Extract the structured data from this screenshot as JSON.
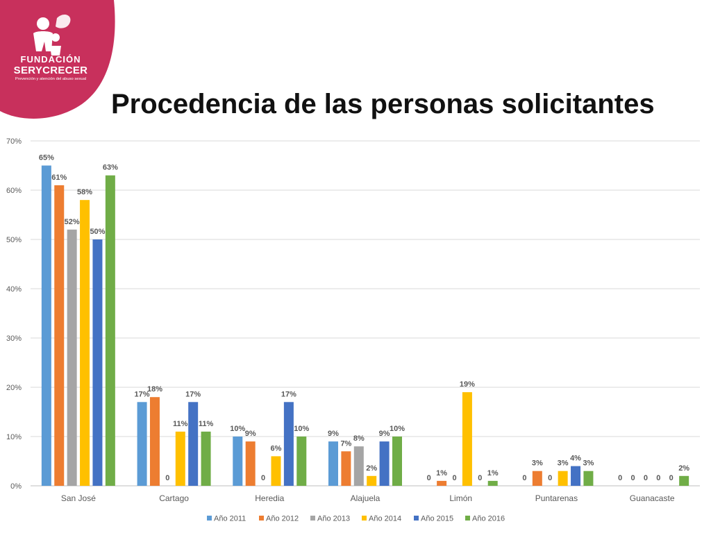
{
  "logo": {
    "line1": "FUNDACIÓN",
    "line2": "SERYCRECER",
    "line3": "Prevención y atención del abuso sexual"
  },
  "slide": {
    "title": "Procedencia de las personas solicitantes"
  },
  "colors": {
    "brand": "#c8305c"
  },
  "chart_data": {
    "type": "bar",
    "title": "",
    "xlabel": "",
    "ylabel": "",
    "ylim": [
      0,
      0.7
    ],
    "y_ticks": [
      "0%",
      "10%",
      "20%",
      "30%",
      "40%",
      "50%",
      "60%",
      "70%"
    ],
    "grid": true,
    "legend_position": "bottom",
    "categories": [
      "San José",
      "Cartago",
      "Heredia",
      "Alajuela",
      "Limón",
      "Puntarenas",
      "Guanacaste"
    ],
    "series": [
      {
        "name": "Año 2011",
        "color": "#5b9bd5",
        "values": [
          0.65,
          0.17,
          0.1,
          0.09,
          0,
          0,
          0
        ],
        "labels": [
          "65%",
          "17%",
          "10%",
          "9%",
          "0",
          "0",
          "0"
        ]
      },
      {
        "name": "Año 2012",
        "color": "#ed7d31",
        "values": [
          0.61,
          0.18,
          0.09,
          0.07,
          0.01,
          0.03,
          0
        ],
        "labels": [
          "61%",
          "18%",
          "9%",
          "7%",
          "1%",
          "3%",
          "0"
        ]
      },
      {
        "name": "Año 2013",
        "color": "#a5a5a5",
        "values": [
          0.52,
          0,
          0,
          0.08,
          0,
          0,
          0
        ],
        "labels": [
          "52%",
          "0",
          "0",
          "8%",
          "0",
          "0",
          "0"
        ]
      },
      {
        "name": "Año 2014",
        "color": "#ffc000",
        "values": [
          0.58,
          0.11,
          0.06,
          0.02,
          0.19,
          0.03,
          0
        ],
        "labels": [
          "58%",
          "11%",
          "6%",
          "2%",
          "19%",
          "3%",
          "0"
        ]
      },
      {
        "name": "Año 2015",
        "color": "#4472c4",
        "values": [
          0.5,
          0.17,
          0.17,
          0.09,
          0,
          0.04,
          0
        ],
        "labels": [
          "50%",
          "17%",
          "17%",
          "9%",
          "0",
          "4%",
          "0"
        ]
      },
      {
        "name": "Año 2016",
        "color": "#70ad47",
        "values": [
          0.63,
          0.11,
          0.1,
          0.1,
          0.01,
          0.03,
          0.02
        ],
        "labels": [
          "63%",
          "11%",
          "10%",
          "10%",
          "1%",
          "3%",
          "2%"
        ]
      }
    ]
  }
}
